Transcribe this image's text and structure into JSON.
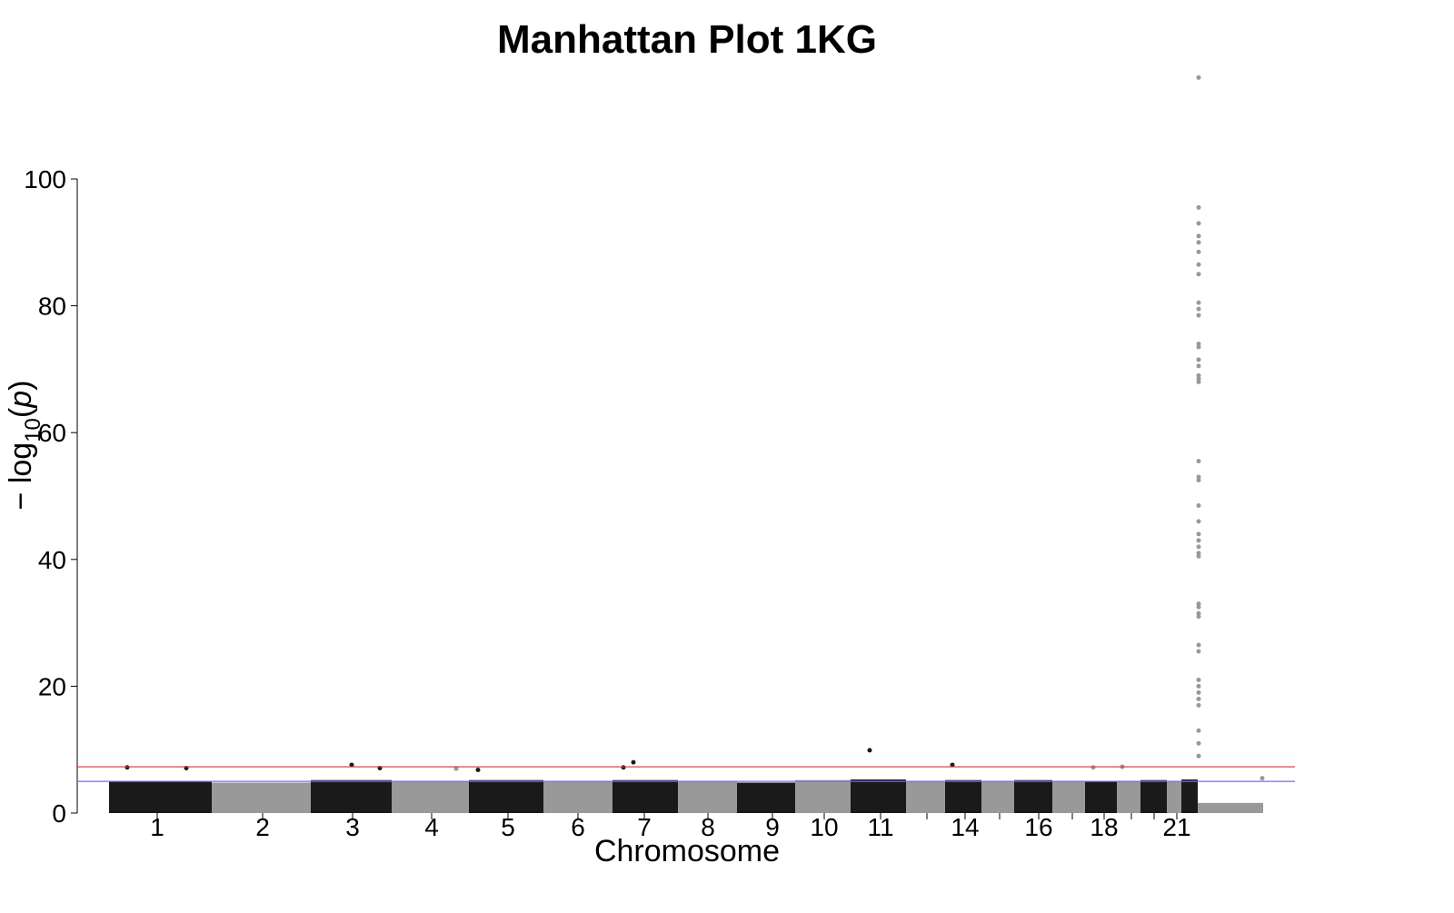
{
  "chart_data": {
    "type": "manhattan",
    "title": "Manhattan Plot 1KG",
    "xlabel": "Chromosome",
    "ylabel": [
      "− log",
      "10",
      "(",
      "p",
      ")"
    ],
    "xlim": [
      0,
      1340
    ],
    "ylim": [
      0,
      100
    ],
    "yticks": [
      0,
      20,
      40,
      60,
      80,
      100
    ],
    "xticks": [
      {
        "value": 88,
        "label": "1"
      },
      {
        "value": 204,
        "label": "2"
      },
      {
        "value": 303,
        "label": "3"
      },
      {
        "value": 390,
        "label": "4"
      },
      {
        "value": 474,
        "label": "5"
      },
      {
        "value": 551,
        "label": "6"
      },
      {
        "value": 624,
        "label": "7"
      },
      {
        "value": 694,
        "label": "8"
      },
      {
        "value": 765,
        "label": "9"
      },
      {
        "value": 822,
        "label": "10"
      },
      {
        "value": 884,
        "label": "11"
      },
      {
        "value": 935,
        "label": null
      },
      {
        "value": 977,
        "label": "14"
      },
      {
        "value": 1015,
        "label": null
      },
      {
        "value": 1058,
        "label": "16"
      },
      {
        "value": 1095,
        "label": null
      },
      {
        "value": 1130,
        "label": "18"
      },
      {
        "value": 1160,
        "label": null
      },
      {
        "value": 1185,
        "label": null
      },
      {
        "value": 1210,
        "label": "21"
      }
    ],
    "blocks": [
      {
        "x": [
          35,
          148
        ],
        "value": 5,
        "color": "#1a1a1a"
      },
      {
        "x": [
          148,
          257
        ],
        "value": 4.8,
        "color": "#999999"
      },
      {
        "x": [
          257,
          346
        ],
        "value": 5.2,
        "color": "#1a1a1a"
      },
      {
        "x": [
          346,
          431
        ],
        "value": 5,
        "color": "#999999"
      },
      {
        "x": [
          431,
          513
        ],
        "value": 5.2,
        "color": "#1a1a1a"
      },
      {
        "x": [
          513,
          589
        ],
        "value": 5,
        "color": "#999999"
      },
      {
        "x": [
          589,
          661
        ],
        "value": 5.2,
        "color": "#1a1a1a"
      },
      {
        "x": [
          661,
          726
        ],
        "value": 5,
        "color": "#999999"
      },
      {
        "x": [
          726,
          790
        ],
        "value": 4.8,
        "color": "#1a1a1a"
      },
      {
        "x": [
          790,
          851
        ],
        "value": 5.2,
        "color": "#999999"
      },
      {
        "x": [
          851,
          912
        ],
        "value": 5.3,
        "color": "#1a1a1a"
      },
      {
        "x": [
          912,
          955
        ],
        "value": 5,
        "color": "#999999"
      },
      {
        "x": [
          955,
          995
        ],
        "value": 5.2,
        "color": "#1a1a1a"
      },
      {
        "x": [
          995,
          1031
        ],
        "value": 5,
        "color": "#999999"
      },
      {
        "x": [
          1031,
          1073
        ],
        "value": 5.2,
        "color": "#1a1a1a"
      },
      {
        "x": [
          1073,
          1109
        ],
        "value": 5,
        "color": "#999999"
      },
      {
        "x": [
          1109,
          1144
        ],
        "value": 5,
        "color": "#1a1a1a"
      },
      {
        "x": [
          1144,
          1170
        ],
        "value": 5,
        "color": "#999999"
      },
      {
        "x": [
          1170,
          1199
        ],
        "value": 5.2,
        "color": "#1a1a1a"
      },
      {
        "x": [
          1199,
          1215
        ],
        "value": 5,
        "color": "#999999"
      },
      {
        "x": [
          1215,
          1233
        ],
        "value": 5.3,
        "color": "#1a1a1a"
      },
      {
        "x": [
          1233,
          1305
        ],
        "value": 1.6,
        "color": "#999999"
      }
    ],
    "peaks": {
      "x": [
        55,
        120,
        302,
        333,
        417,
        441,
        612,
        601,
        872,
        963,
        1118,
        1150,
        1234,
        1234,
        1234,
        1234,
        1234,
        1234,
        1234,
        1234,
        1234,
        1234,
        1234,
        1234,
        1234,
        1234,
        1234,
        1234,
        1234,
        1234,
        1234,
        1234,
        1234,
        1234,
        1234,
        1234,
        1234,
        1234,
        1234,
        1234,
        1234,
        1234,
        1234,
        1234,
        1234,
        1234,
        1234,
        1234,
        1234,
        1234,
        1234,
        1234,
        1234,
        1234,
        1304
      ],
      "values": [
        7.2,
        7.1,
        7.6,
        7.1,
        7,
        6.8,
        8,
        7.2,
        9.9,
        7.6,
        7.2,
        7.3,
        116,
        95.5,
        93,
        91,
        90,
        88.5,
        86.5,
        85,
        80.5,
        79.5,
        78.5,
        74,
        73.5,
        71.5,
        70.5,
        69,
        68.5,
        68,
        55.5,
        53,
        52.5,
        48.5,
        46,
        44,
        43,
        42,
        41,
        40.5,
        33,
        32.5,
        31.5,
        31,
        26.5,
        25.5,
        21,
        20,
        19,
        18,
        17,
        13,
        11,
        9,
        5.5
      ],
      "colors": [
        "#1a1a1a",
        "#1a1a1a",
        "#1a1a1a",
        "#1a1a1a",
        "#999999",
        "#1a1a1a",
        "#1a1a1a",
        "#1a1a1a",
        "#1a1a1a",
        "#1a1a1a",
        "#999999",
        "#999999",
        "#999999",
        "#999999",
        "#999999",
        "#999999",
        "#999999",
        "#999999",
        "#999999",
        "#999999",
        "#999999",
        "#999999",
        "#999999",
        "#999999",
        "#999999",
        "#999999",
        "#999999",
        "#999999",
        "#999999",
        "#999999",
        "#999999",
        "#999999",
        "#999999",
        "#999999",
        "#999999",
        "#999999",
        "#999999",
        "#999999",
        "#999999",
        "#999999",
        "#999999",
        "#999999",
        "#999999",
        "#999999",
        "#999999",
        "#999999",
        "#999999",
        "#999999",
        "#999999",
        "#999999",
        "#999999",
        "#999999",
        "#999999",
        "#999999",
        "#999999"
      ]
    },
    "hlines": [
      {
        "value": 7.3,
        "color": "#e03030"
      },
      {
        "value": 5,
        "color": "#7070e0"
      }
    ]
  }
}
